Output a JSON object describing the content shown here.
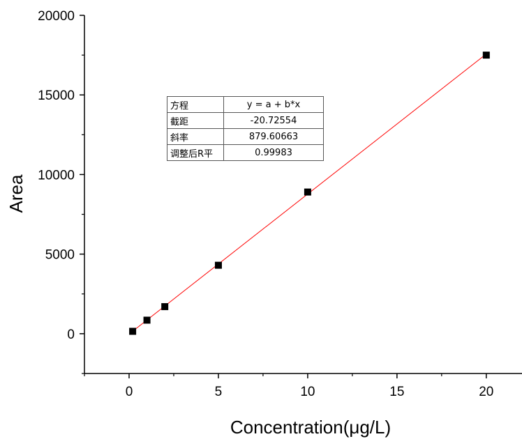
{
  "chart_data": {
    "type": "scatter",
    "xlabel": "Concentration(μg/L)",
    "ylabel": "Area",
    "xlim": [
      -2.5,
      22
    ],
    "ylim": [
      -2500,
      20000
    ],
    "x_ticks": [
      0,
      5,
      10,
      15,
      20
    ],
    "y_ticks": [
      0,
      5000,
      10000,
      15000,
      20000
    ],
    "grid": false,
    "series": [
      {
        "x": [
          0.2,
          1,
          2,
          5,
          10,
          20
        ],
        "y": [
          150,
          850,
          1700,
          4300,
          8900,
          17500
        ],
        "marker": "square",
        "color": "#000000"
      }
    ],
    "fit": {
      "intercept": -20.72554,
      "slope": 879.60663,
      "x_range": [
        0.2,
        20
      ],
      "color": "#ff0000"
    },
    "stats_table": [
      {
        "key": "方程",
        "value": "y = a + b*x"
      },
      {
        "key": "截距",
        "value": "-20.72554"
      },
      {
        "key": "斜率",
        "value": "879.60663"
      },
      {
        "key": "调整后R平",
        "value": "0.99983"
      }
    ]
  }
}
